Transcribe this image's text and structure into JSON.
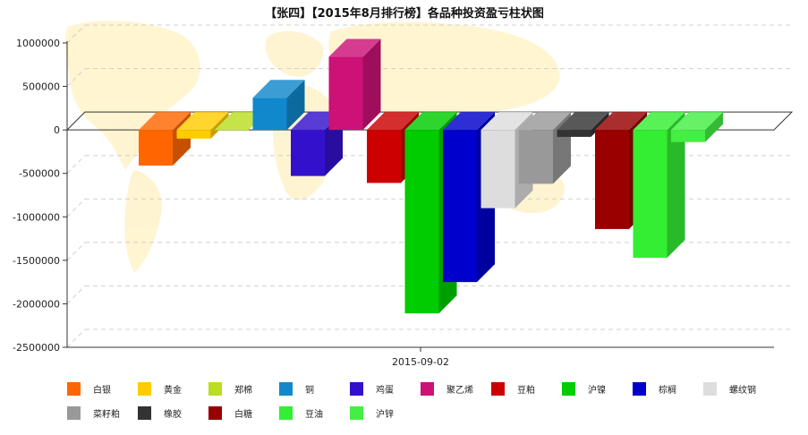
{
  "chart_data": {
    "type": "bar",
    "title": "【张四】【2015年8月排行榜】各品种投资盈亏柱状图",
    "categories": [
      "2015-09-02"
    ],
    "ylim": [
      -2500000,
      1000000
    ],
    "yticks": [
      1000000,
      500000,
      0,
      -500000,
      -1000000,
      -1500000,
      -2000000,
      -2500000
    ],
    "grid": true,
    "legend_position": "bottom",
    "series": [
      {
        "name": "白银",
        "values": [
          -410000
        ],
        "color": "#ff6600"
      },
      {
        "name": "黄金",
        "values": [
          -100000
        ],
        "color": "#ffcc00"
      },
      {
        "name": "郑棉",
        "values": [
          0
        ],
        "color": "#bbdd22"
      },
      {
        "name": "铜",
        "values": [
          370000
        ],
        "color": "#1188cc"
      },
      {
        "name": "鸡蛋",
        "values": [
          -530000
        ],
        "color": "#3311cc"
      },
      {
        "name": "聚乙烯",
        "values": [
          840000
        ],
        "color": "#cc1177"
      },
      {
        "name": "豆粕",
        "values": [
          -610000
        ],
        "color": "#cc0000"
      },
      {
        "name": "沪镍",
        "values": [
          -2110000
        ],
        "color": "#00cc00"
      },
      {
        "name": "棕榈",
        "values": [
          -1750000
        ],
        "color": "#0000cc"
      },
      {
        "name": "螺纹钢",
        "values": [
          -900000
        ],
        "color": "#dddddd"
      },
      {
        "name": "菜籽粕",
        "values": [
          -620000
        ],
        "color": "#999999"
      },
      {
        "name": "橡胶",
        "values": [
          -80000
        ],
        "color": "#333333"
      },
      {
        "name": "白糖",
        "values": [
          -1140000
        ],
        "color": "#990000"
      },
      {
        "name": "豆油",
        "values": [
          -1470000
        ],
        "color": "#33ee33"
      },
      {
        "name": "沪锌",
        "values": [
          -140000
        ],
        "color": "#44ee44"
      }
    ]
  }
}
